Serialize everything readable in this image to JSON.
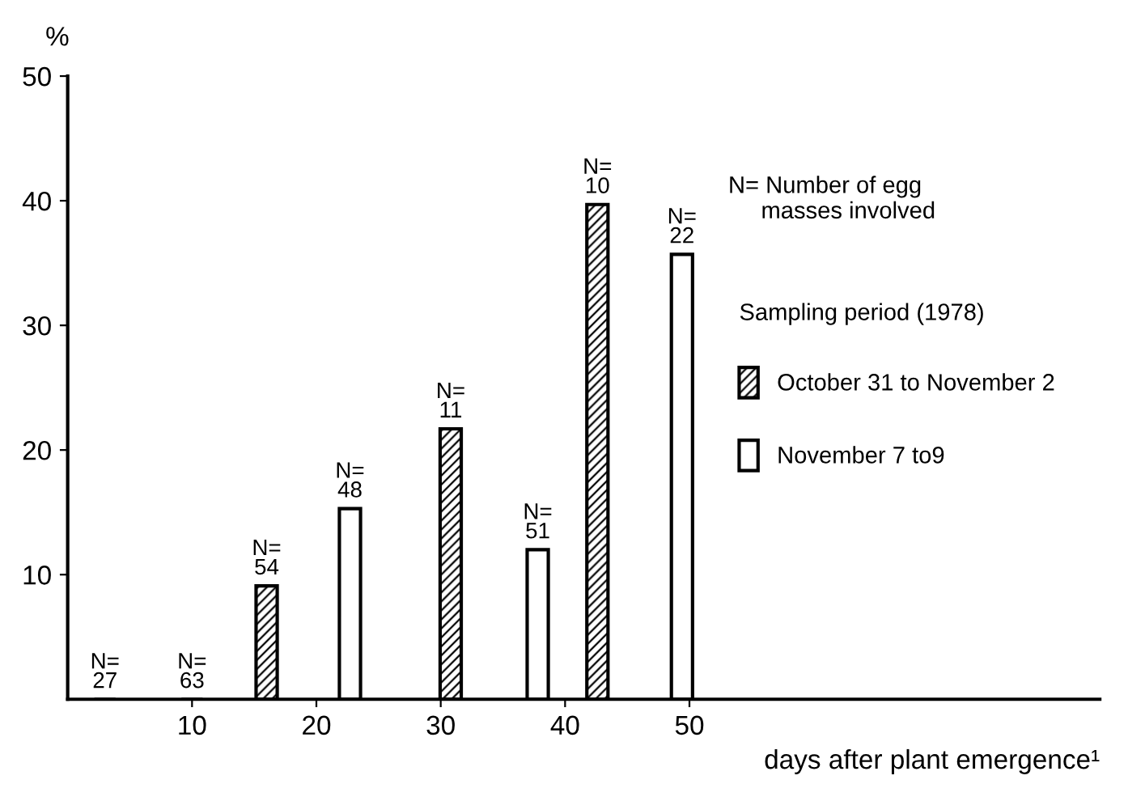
{
  "chart_data": {
    "type": "bar",
    "xlabel": "days after plant emergence¹",
    "ylabel": "%",
    "legend_title": "Sampling period (1978)",
    "legend": "right",
    "annotations": [
      "N= Number of egg\n     masses involved",
      {
        "text": "N=\n27",
        "x": 3,
        "y": 0
      },
      {
        "text": "N=\n54",
        "x": 16,
        "y": 9.1
      },
      {
        "text": "N=\n11",
        "x": 30.8,
        "y": 21.7
      },
      {
        "text": "N=\n10",
        "x": 42.6,
        "y": 39.7
      },
      {
        "text": "N=\n63",
        "x": 10,
        "y": 0
      },
      {
        "text": "N=\n48",
        "x": 22.7,
        "y": 15.3
      },
      {
        "text": "N=\n51",
        "x": 37.8,
        "y": 12
      },
      {
        "text": "N=\n22",
        "x": 49.4,
        "y": 35.7
      }
    ],
    "series": [
      {
        "name": "October 31 to November 2",
        "color": "#000000",
        "x": [
          3,
          16,
          30.8,
          42.6
        ],
        "values": [
          0,
          9.1,
          21.7,
          39.7
        ]
      },
      {
        "name": "November 7 to9",
        "color": "#ffffff",
        "x": [
          10,
          22.7,
          37.8,
          49.4
        ],
        "values": [
          0,
          15.3,
          12,
          35.7
        ]
      }
    ],
    "xlim": [
      0,
      83
    ],
    "xticks": [
      10,
      20,
      30,
      40,
      50
    ],
    "ylim": [
      0,
      50
    ],
    "yticks": [
      10,
      20,
      30,
      40,
      50
    ]
  }
}
